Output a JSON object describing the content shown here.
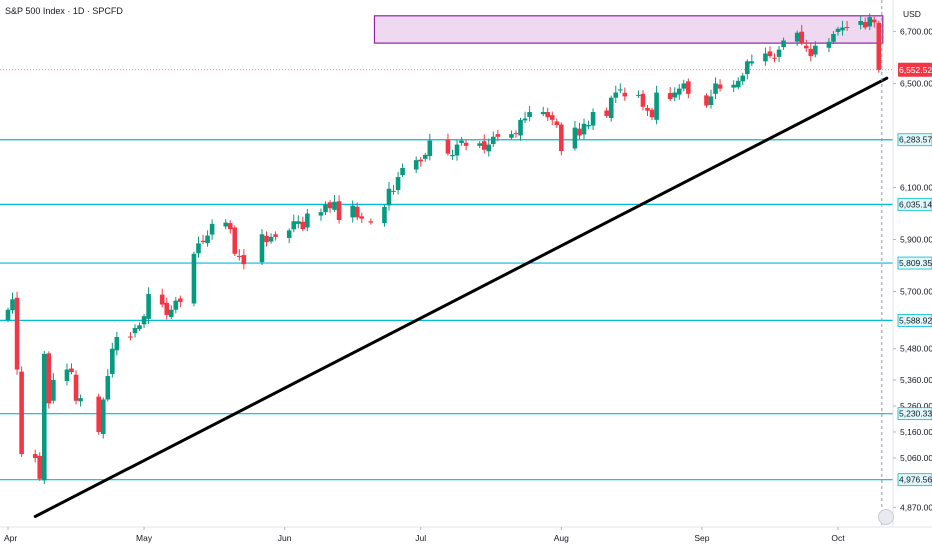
{
  "header": {
    "title": "S&P 500 Index · 1D · SPCFD",
    "currency": "USD"
  },
  "colors": {
    "up": "#089981",
    "down": "#f23645",
    "support_line": "#00bcd4",
    "zone_fill": "rgba(186,104,200,0.25)",
    "zone_border": "#8e24aa",
    "trendline": "#000000",
    "last_price_label": "#f23645",
    "level_label_bg": "#e0f7fa"
  },
  "chart_data": {
    "type": "candlestick",
    "y_scale": "linear",
    "ylim": [
      4810,
      6790
    ],
    "x_months": [
      "Apr",
      "May",
      "Jun",
      "Jul",
      "Aug",
      "Sep",
      "Oct"
    ],
    "y_ticks": [
      6700,
      6500,
      6100,
      5900,
      5700,
      5480,
      5360,
      5260,
      5160,
      5060,
      4870
    ],
    "y_tick_labels": [
      "6,700.00",
      "6,500.00",
      "6,100.00",
      "5,900.00",
      "5,700.00",
      "5,480.00",
      "5,360.00",
      "5,260.00",
      "5,160.00",
      "5,060.00",
      "4,870.00"
    ],
    "horizontal_levels": [
      {
        "value": 6283.57,
        "label": "6,283.57"
      },
      {
        "value": 6035.14,
        "label": "6,035.14"
      },
      {
        "value": 5809.35,
        "label": "5,809.35"
      },
      {
        "value": 5588.92,
        "label": "5,588.92"
      },
      {
        "value": 5230.33,
        "label": "5,230.33"
      },
      {
        "value": 4976.56,
        "label": "4,976.56"
      }
    ],
    "last_price": {
      "value": 6552.52,
      "label": "6,552.52"
    },
    "zone": {
      "top": 6760,
      "bottom": 6655,
      "start": "Jun 23",
      "end": "Oct 10"
    },
    "trendline": {
      "from": {
        "date": "Apr 7",
        "value": 4835
      },
      "to": {
        "date": "Oct 10",
        "value": 6520
      }
    },
    "close_points": [
      [
        "Apr 1",
        5630
      ],
      [
        "Apr 2",
        5670
      ],
      [
        "Apr 3",
        5400
      ],
      [
        "Apr 4",
        5075
      ],
      [
        "Apr 7",
        5060
      ],
      [
        "Apr 8",
        4980
      ],
      [
        "Apr 9",
        5460
      ],
      [
        "Apr 10",
        5270
      ],
      [
        "Apr 11",
        5360
      ],
      [
        "Apr 14",
        5400
      ],
      [
        "Apr 15",
        5390
      ],
      [
        "Apr 16",
        5280
      ],
      [
        "Apr 17",
        5290
      ],
      [
        "Apr 21",
        5160
      ],
      [
        "Apr 22",
        5285
      ],
      [
        "Apr 23",
        5375
      ],
      [
        "Apr 24",
        5480
      ],
      [
        "Apr 25",
        5525
      ],
      [
        "Apr 28",
        5530
      ],
      [
        "Apr 29",
        5560
      ],
      [
        "Apr 30",
        5570
      ],
      [
        "May 1",
        5605
      ],
      [
        "May 2",
        5690
      ],
      [
        "May 5",
        5650
      ],
      [
        "May 6",
        5610
      ],
      [
        "May 7",
        5630
      ],
      [
        "May 8",
        5665
      ],
      [
        "May 9",
        5660
      ],
      [
        "May 12",
        5845
      ],
      [
        "May 13",
        5885
      ],
      [
        "May 14",
        5890
      ],
      [
        "May 15",
        5915
      ],
      [
        "May 16",
        5960
      ],
      [
        "May 19",
        5965
      ],
      [
        "May 20",
        5940
      ],
      [
        "May 21",
        5845
      ],
      [
        "May 22",
        5840
      ],
      [
        "May 23",
        5805
      ],
      [
        "May 27",
        5920
      ],
      [
        "May 28",
        5890
      ],
      [
        "May 29",
        5910
      ],
      [
        "May 30",
        5910
      ],
      [
        "Jun 2",
        5935
      ],
      [
        "Jun 3",
        5970
      ],
      [
        "Jun 4",
        5970
      ],
      [
        "Jun 5",
        5940
      ],
      [
        "Jun 6",
        6000
      ],
      [
        "Jun 9",
        6005
      ],
      [
        "Jun 10",
        6035
      ],
      [
        "Jun 11",
        6020
      ],
      [
        "Jun 12",
        6045
      ],
      [
        "Jun 13",
        5975
      ],
      [
        "Jun 16",
        6030
      ],
      [
        "Jun 17",
        5985
      ],
      [
        "Jun 18",
        5980
      ],
      [
        "Jun 20",
        5965
      ],
      [
        "Jun 23",
        6025
      ],
      [
        "Jun 24",
        6095
      ],
      [
        "Jun 25",
        6090
      ],
      [
        "Jun 26",
        6140
      ],
      [
        "Jun 27",
        6175
      ],
      [
        "Jun 30",
        6205
      ],
      [
        "Jul 1",
        6200
      ],
      [
        "Jul 2",
        6225
      ],
      [
        "Jul 3",
        6280
      ],
      [
        "Jul 7",
        6230
      ],
      [
        "Jul 8",
        6225
      ],
      [
        "Jul 9",
        6265
      ],
      [
        "Jul 10",
        6280
      ],
      [
        "Jul 11",
        6260
      ],
      [
        "Jul 14",
        6270
      ],
      [
        "Jul 15",
        6245
      ],
      [
        "Jul 16",
        6265
      ],
      [
        "Jul 17",
        6295
      ],
      [
        "Jul 18",
        6295
      ],
      [
        "Jul 21",
        6305
      ],
      [
        "Jul 22",
        6310
      ],
      [
        "Jul 23",
        6360
      ],
      [
        "Jul 24",
        6365
      ],
      [
        "Jul 25",
        6390
      ],
      [
        "Jul 28",
        6390
      ],
      [
        "Jul 29",
        6370
      ],
      [
        "Jul 30",
        6360
      ],
      [
        "Jul 31",
        6340
      ],
      [
        "Aug 1",
        6240
      ],
      [
        "Aug 4",
        6330
      ],
      [
        "Aug 5",
        6300
      ],
      [
        "Aug 6",
        6345
      ],
      [
        "Aug 7",
        6340
      ],
      [
        "Aug 8",
        6390
      ],
      [
        "Aug 11",
        6375
      ],
      [
        "Aug 12",
        6445
      ],
      [
        "Aug 13",
        6465
      ],
      [
        "Aug 14",
        6470
      ],
      [
        "Aug 15",
        6450
      ],
      [
        "Aug 18",
        6450
      ],
      [
        "Aug 19",
        6410
      ],
      [
        "Aug 20",
        6395
      ],
      [
        "Aug 21",
        6370
      ],
      [
        "Aug 22",
        6465
      ],
      [
        "Aug 25",
        6440
      ],
      [
        "Aug 26",
        6465
      ],
      [
        "Aug 27",
        6480
      ],
      [
        "Aug 28",
        6500
      ],
      [
        "Aug 29",
        6460
      ],
      [
        "Sep 2",
        6415
      ],
      [
        "Sep 3",
        6450
      ],
      [
        "Sep 4",
        6500
      ],
      [
        "Sep 5",
        6480
      ],
      [
        "Sep 8",
        6495
      ],
      [
        "Sep 9",
        6510
      ],
      [
        "Sep 10",
        6530
      ],
      [
        "Sep 11",
        6585
      ],
      [
        "Sep 12",
        6585
      ],
      [
        "Sep 15",
        6615
      ],
      [
        "Sep 16",
        6605
      ],
      [
        "Sep 17",
        6600
      ],
      [
        "Sep 18",
        6630
      ],
      [
        "Sep 19",
        6665
      ],
      [
        "Sep 22",
        6695
      ],
      [
        "Sep 23",
        6655
      ],
      [
        "Sep 24",
        6635
      ],
      [
        "Sep 25",
        6605
      ],
      [
        "Sep 26",
        6645
      ],
      [
        "Sep 29",
        6660
      ],
      [
        "Sep 30",
        6690
      ],
      [
        "Oct 1",
        6710
      ],
      [
        "Oct 2",
        6715
      ],
      [
        "Oct 3",
        6715
      ],
      [
        "Oct 6",
        6740
      ],
      [
        "Oct 7",
        6715
      ],
      [
        "Oct 8",
        6755
      ],
      [
        "Oct 9",
        6735
      ],
      [
        "Oct 10",
        6552.52
      ]
    ]
  }
}
